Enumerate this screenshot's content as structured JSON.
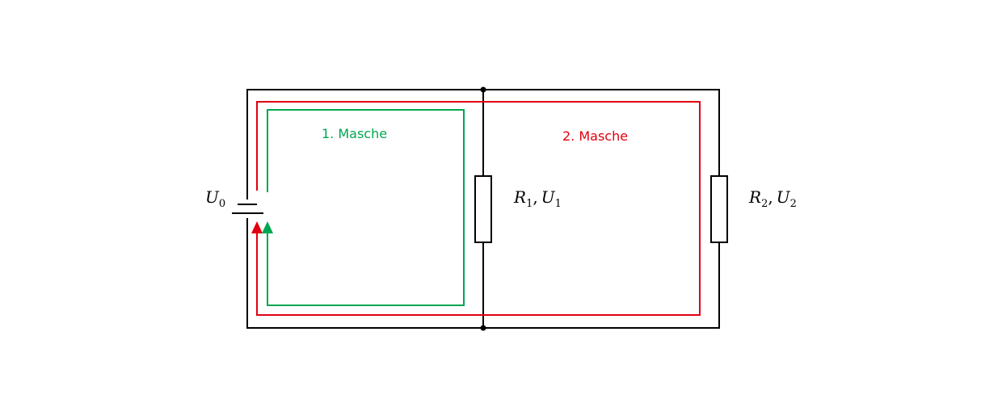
{
  "colors": {
    "wire": "#000000",
    "loop1": "#00a651",
    "loop2": "#e0000f",
    "background": "#ffffff"
  },
  "loops": [
    {
      "id": "loop-1",
      "label": "1. Masche"
    },
    {
      "id": "loop-2",
      "label": "2. Masche"
    }
  ],
  "components": {
    "source": {
      "symbol": "U",
      "sub": "0"
    },
    "resistor1": {
      "r": "R",
      "r_sub": "1",
      "comma": ",",
      "u": "U",
      "u_sub": "1"
    },
    "resistor2": {
      "r": "R",
      "r_sub": "2",
      "comma": ",",
      "u": "U",
      "u_sub": "2"
    }
  }
}
